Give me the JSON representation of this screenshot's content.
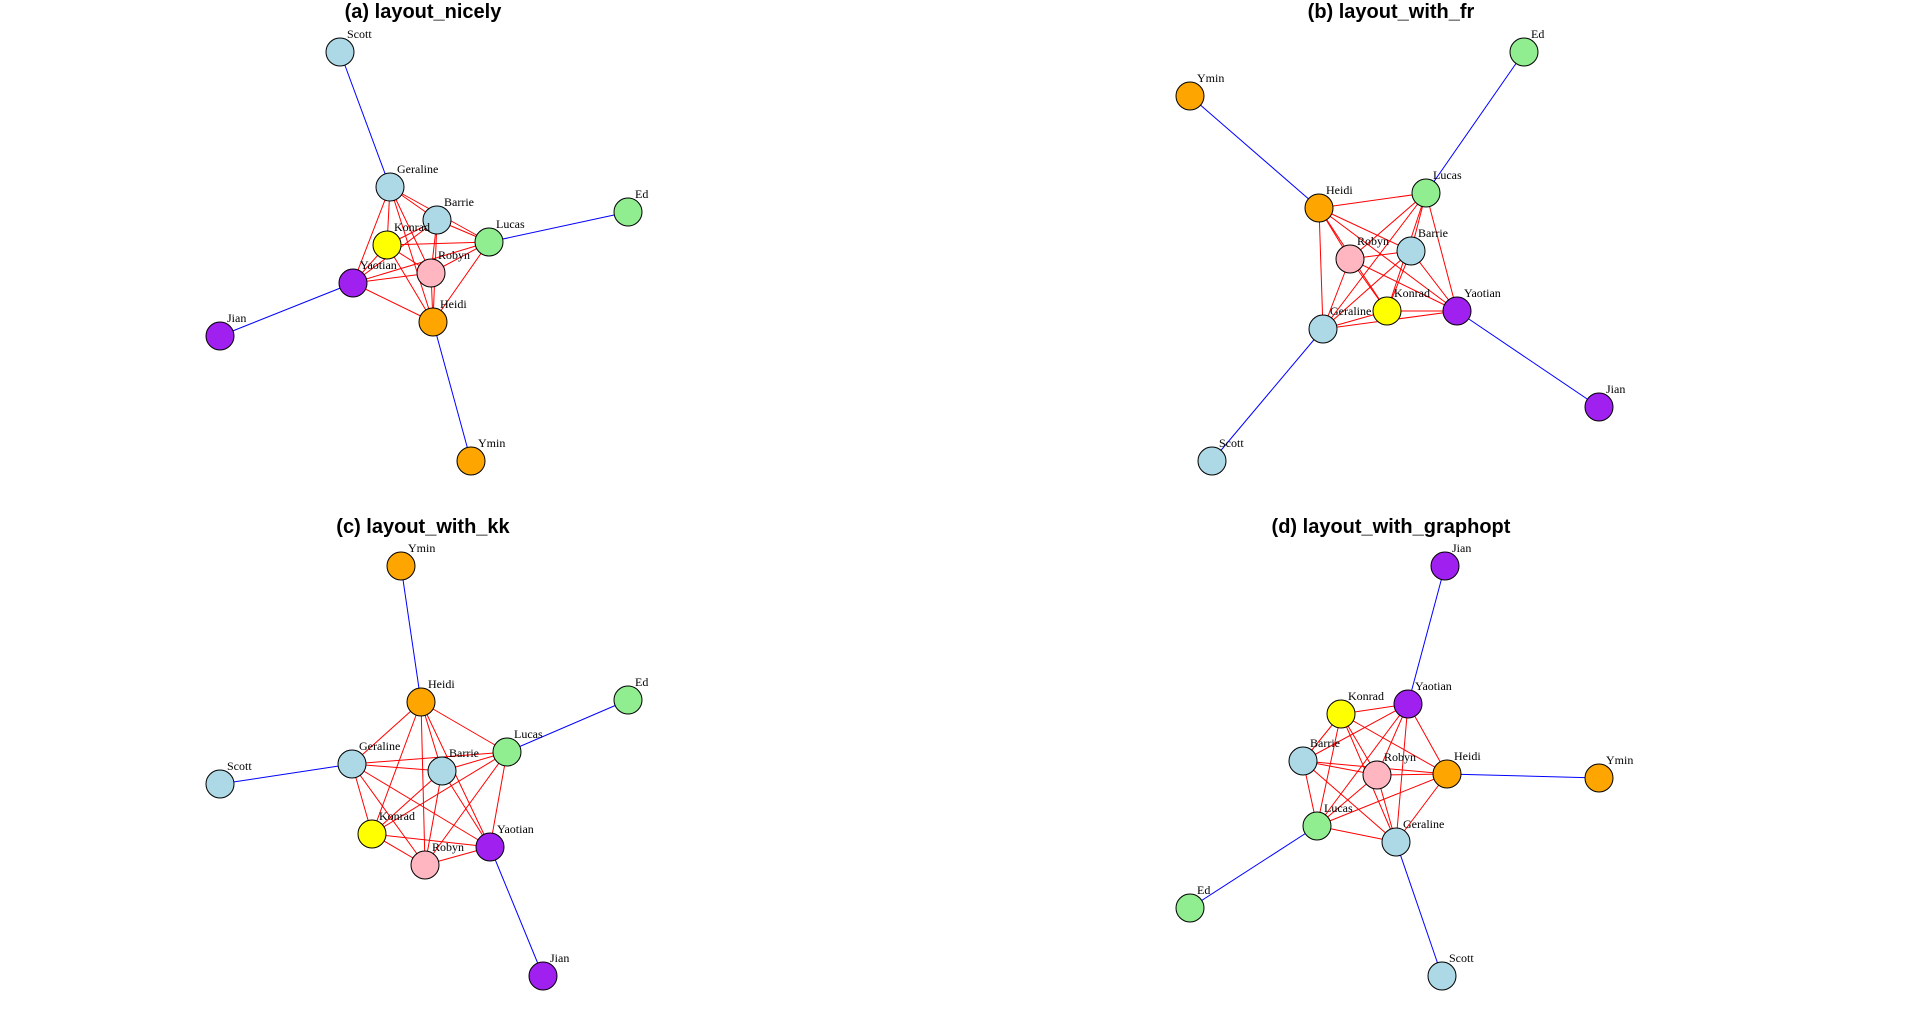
{
  "figure": {
    "panels": [
      {
        "id": "a",
        "title": "(a) layout_nicely",
        "nodes": [
          {
            "name": "Scott",
            "color": "#add8e6"
          },
          {
            "name": "Geraline",
            "color": "#add8e6"
          },
          {
            "name": "Barrie",
            "color": "#add8e6"
          },
          {
            "name": "Konrad",
            "color": "#ffff00"
          },
          {
            "name": "Lucas",
            "color": "#90ee90"
          },
          {
            "name": "Ed",
            "color": "#90ee90"
          },
          {
            "name": "Robyn",
            "color": "#ffb6c1"
          },
          {
            "name": "Yaotian",
            "color": "#a020f0"
          },
          {
            "name": "Jian",
            "color": "#a020f0"
          },
          {
            "name": "Heidi",
            "color": "#ffa500"
          },
          {
            "name": "Ymin",
            "color": "#ffa500"
          }
        ]
      },
      {
        "id": "b",
        "title": "(b) layout_with_fr",
        "nodes": [
          {
            "name": "Ed",
            "color": "#90ee90"
          },
          {
            "name": "Ymin",
            "color": "#ffa500"
          },
          {
            "name": "Heidi",
            "color": "#ffa500"
          },
          {
            "name": "Lucas",
            "color": "#90ee90"
          },
          {
            "name": "Robyn",
            "color": "#ffb6c1"
          },
          {
            "name": "Barrie",
            "color": "#add8e6"
          },
          {
            "name": "Konrad",
            "color": "#ffff00"
          },
          {
            "name": "Yaotian",
            "color": "#a020f0"
          },
          {
            "name": "Geraline",
            "color": "#add8e6"
          },
          {
            "name": "Jian",
            "color": "#a020f0"
          },
          {
            "name": "Scott",
            "color": "#add8e6"
          }
        ]
      },
      {
        "id": "c",
        "title": "(c) layout_with_kk",
        "nodes": [
          {
            "name": "Ymin",
            "color": "#ffa500"
          },
          {
            "name": "Heidi",
            "color": "#ffa500"
          },
          {
            "name": "Ed",
            "color": "#90ee90"
          },
          {
            "name": "Lucas",
            "color": "#90ee90"
          },
          {
            "name": "Geraline",
            "color": "#add8e6"
          },
          {
            "name": "Barrie",
            "color": "#add8e6"
          },
          {
            "name": "Scott",
            "color": "#add8e6"
          },
          {
            "name": "Konrad",
            "color": "#ffff00"
          },
          {
            "name": "Yaotian",
            "color": "#a020f0"
          },
          {
            "name": "Robyn",
            "color": "#ffb6c1"
          },
          {
            "name": "Jian",
            "color": "#a020f0"
          }
        ]
      },
      {
        "id": "d",
        "title": "(d) layout_with_graphopt",
        "nodes": [
          {
            "name": "Jian",
            "color": "#a020f0"
          },
          {
            "name": "Konrad",
            "color": "#ffff00"
          },
          {
            "name": "Yaotian",
            "color": "#a020f0"
          },
          {
            "name": "Barrie",
            "color": "#add8e6"
          },
          {
            "name": "Robyn",
            "color": "#ffb6c1"
          },
          {
            "name": "Heidi",
            "color": "#ffa500"
          },
          {
            "name": "Ymin",
            "color": "#ffa500"
          },
          {
            "name": "Lucas",
            "color": "#90ee90"
          },
          {
            "name": "Geraline",
            "color": "#add8e6"
          },
          {
            "name": "Ed",
            "color": "#90ee90"
          },
          {
            "name": "Scott",
            "color": "#add8e6"
          }
        ]
      }
    ],
    "core_nodes": [
      "Geraline",
      "Barrie",
      "Konrad",
      "Lucas",
      "Robyn",
      "Yaotian",
      "Heidi"
    ],
    "pendant_edges": [
      [
        "Scott",
        "Geraline"
      ],
      [
        "Ed",
        "Lucas"
      ],
      [
        "Jian",
        "Yaotian"
      ],
      [
        "Ymin",
        "Heidi"
      ]
    ],
    "core_edge_color": "#ff0000",
    "pendant_edge_color": "#0000ff"
  }
}
